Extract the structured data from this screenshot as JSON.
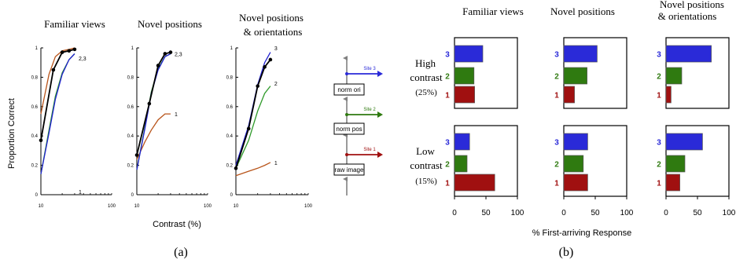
{
  "colors": {
    "site1": "#a01010",
    "site2": "#2f7a10",
    "site3": "#2a2ad8",
    "human": "#000000",
    "curve1": "#b8541a",
    "curve2": "#2f9a2a",
    "curve3": "#2020d0",
    "axis": "#000000",
    "arrow_gray": "#808080"
  },
  "panel_a": {
    "caption": "(a)",
    "ylabel": "Proportion Correct",
    "xlabel": "Contrast (%)"
  },
  "panel_b": {
    "caption": "(b)",
    "xlabel": "% First-arriving Response",
    "row_titles": [
      "High",
      "contrast",
      "(25%)",
      "Low",
      "contrast",
      "(15%)"
    ]
  },
  "diagram": {
    "boxes": [
      "norm ori",
      "norm pos",
      "raw image"
    ],
    "sites": [
      "Site 3",
      "Site 2",
      "Site 1"
    ]
  },
  "chart_data": [
    {
      "type": "line",
      "title": "Familiar views",
      "xscale": "log",
      "xlim": [
        10,
        100
      ],
      "ylim": [
        0,
        1
      ],
      "xticks": [
        "10",
        "100"
      ],
      "yticks": [
        "0",
        "0.2",
        "0.4",
        "0.6",
        "0.8",
        "1"
      ],
      "curve_labels": [
        "1",
        "2,3"
      ],
      "series": [
        {
          "color_key": "human",
          "markers": true,
          "x": [
            10,
            15,
            20,
            25,
            30
          ],
          "y": [
            0.37,
            0.85,
            0.97,
            0.98,
            0.99
          ]
        },
        {
          "color_key": "curve1",
          "markers": false,
          "x": [
            10,
            13,
            16,
            20,
            25,
            30
          ],
          "y": [
            0.55,
            0.82,
            0.94,
            0.98,
            0.99,
            1.0
          ]
        },
        {
          "color_key": "curve2",
          "markers": false,
          "x": [
            10,
            13,
            16,
            20,
            25,
            30
          ],
          "y": [
            0.14,
            0.44,
            0.67,
            0.83,
            0.92,
            0.96
          ]
        },
        {
          "color_key": "curve3",
          "markers": false,
          "x": [
            10,
            13,
            16,
            20,
            25,
            30
          ],
          "y": [
            0.14,
            0.42,
            0.65,
            0.82,
            0.92,
            0.96
          ]
        }
      ]
    },
    {
      "type": "line",
      "title": "Novel positions",
      "xscale": "log",
      "xlim": [
        10,
        100
      ],
      "ylim": [
        0,
        1
      ],
      "xticks": [
        "10",
        "100"
      ],
      "yticks": [
        "0",
        "0.2",
        "0.4",
        "0.6",
        "0.8",
        "1"
      ],
      "curve_labels": [
        "2,3",
        "1"
      ],
      "series": [
        {
          "color_key": "human",
          "markers": true,
          "x": [
            10,
            15,
            20,
            25,
            30
          ],
          "y": [
            0.27,
            0.62,
            0.88,
            0.96,
            0.97
          ]
        },
        {
          "color_key": "curve1",
          "markers": false,
          "x": [
            10,
            13,
            16,
            20,
            25,
            30
          ],
          "y": [
            0.24,
            0.36,
            0.44,
            0.51,
            0.55,
            0.55
          ]
        },
        {
          "color_key": "curve2",
          "markers": false,
          "x": [
            10,
            13,
            16,
            20,
            25,
            30
          ],
          "y": [
            0.17,
            0.46,
            0.7,
            0.86,
            0.94,
            0.96
          ]
        },
        {
          "color_key": "curve3",
          "markers": false,
          "x": [
            10,
            13,
            16,
            20,
            25,
            30
          ],
          "y": [
            0.17,
            0.45,
            0.69,
            0.85,
            0.94,
            0.96
          ]
        }
      ]
    },
    {
      "type": "line",
      "title": "Novel positions & orientations",
      "xscale": "log",
      "xlim": [
        10,
        100
      ],
      "ylim": [
        0,
        1
      ],
      "xticks": [
        "10",
        "100"
      ],
      "yticks": [
        "0",
        "0.2",
        "0.4",
        "0.6",
        "0.8",
        "1"
      ],
      "curve_labels": [
        "3",
        "2",
        "1"
      ],
      "series": [
        {
          "color_key": "human",
          "markers": true,
          "x": [
            10,
            15,
            20,
            25,
            30
          ],
          "y": [
            0.18,
            0.45,
            0.74,
            0.87,
            0.92
          ]
        },
        {
          "color_key": "curve1",
          "markers": false,
          "x": [
            10,
            15,
            20,
            25,
            30
          ],
          "y": [
            0.13,
            0.16,
            0.18,
            0.2,
            0.22
          ]
        },
        {
          "color_key": "curve2",
          "markers": false,
          "x": [
            10,
            15,
            20,
            25,
            30
          ],
          "y": [
            0.18,
            0.37,
            0.57,
            0.69,
            0.74
          ]
        },
        {
          "color_key": "curve3",
          "markers": false,
          "x": [
            10,
            15,
            20,
            25,
            30
          ],
          "y": [
            0.2,
            0.47,
            0.75,
            0.9,
            0.97
          ]
        }
      ]
    },
    {
      "type": "bar",
      "orientation": "horizontal",
      "column_titles": [
        "Familiar views",
        "Novel positions",
        "Novel positions & orientations"
      ],
      "row_titles": [
        "High contrast (25%)",
        "Low contrast (15%)"
      ],
      "categories": [
        "3",
        "2",
        "1"
      ],
      "xlim": [
        0,
        100
      ],
      "xticks": [
        "0",
        "50",
        "100"
      ],
      "values": {
        "high": {
          "familiar": [
            45,
            31,
            32
          ],
          "novel_pos": [
            53,
            37,
            17
          ],
          "novel_pos_ori": [
            72,
            25,
            8
          ]
        },
        "low": {
          "familiar": [
            24,
            20,
            64
          ],
          "novel_pos": [
            38,
            31,
            38
          ],
          "novel_pos_ori": [
            58,
            30,
            22
          ]
        }
      }
    }
  ]
}
